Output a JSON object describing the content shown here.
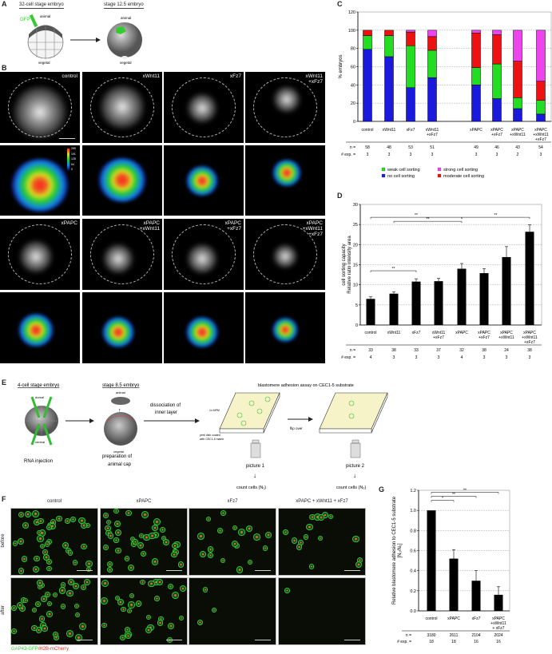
{
  "panels": {
    "A": "A",
    "B": "B",
    "C": "C",
    "D": "D",
    "E": "E",
    "F": "F",
    "G": "G"
  },
  "panelA": {
    "left_title": "32-cell stage embryo",
    "right_title": "stage 12.5 embryo",
    "gfp": "GFP",
    "animal": "animal",
    "vegetal": "vegetal"
  },
  "panelB": {
    "row1_labels": [
      "control",
      "xWnt11",
      "xFz7",
      "xWnt11\n+xFz7"
    ],
    "row2_labels": [
      "xPAPC",
      "xPAPC\n+xWnt11",
      "xPAPC\n+xFz7",
      "xPAPC\n+xWnt11\n+xFz7"
    ],
    "colorbar_ticks": [
      "255",
      "191",
      "128",
      "64",
      "0"
    ]
  },
  "panelE": {
    "step1_title": "4-cell stage embryo",
    "dorsal": "dorsal",
    "ventral": "ventral",
    "step1_caption": "RNA injection",
    "step2_title": "stage 8.5 embryo",
    "animal": "animal",
    "vegetal": "vegetal",
    "step2_caption_1": "preparation of",
    "step2_caption_2": "animal cap",
    "arrow_label_1": "dissociation of",
    "arrow_label_2": "inner layer",
    "assay_title": "blastomere adhesion assay on CEC1-5 substrate",
    "mpm": "1x MPM",
    "dish_1": "petri dish coated",
    "dish_2": "with CEC1-5 matrix",
    "flip": "flip over",
    "picture1": "picture 1",
    "picture2": "picture 2",
    "count1": "count cells  (N₁)",
    "count2": "count cells  (N₂)"
  },
  "panelF": {
    "columns": [
      "control",
      "xPAPC",
      "xFz7",
      "xPAPC + xWnt11 + xFz7"
    ],
    "rows": [
      "before",
      "after"
    ],
    "legend_green": "GAP43-GFP",
    "legend_sep": "/",
    "legend_red": "H2B-mCherry",
    "colors": {
      "green": "#33cc33",
      "red": "#dd3322"
    }
  },
  "chart_data": [
    {
      "id": "C",
      "type": "bar",
      "stacked": true,
      "ylabel": "% embryos",
      "ylim": [
        0,
        120
      ],
      "yticks": [
        0,
        20,
        40,
        60,
        80,
        100,
        120
      ],
      "grid": true,
      "categories": [
        "control",
        "xWnt11",
        "xFz7",
        "xWnt11\n+xFz7",
        "xPAPC",
        "xPAPC\n+xFz7",
        "xPAPC\n+xWnt11",
        "xPAPC\n+xWnt11\n+xFz7"
      ],
      "series": [
        {
          "name": "no cell sorting",
          "color": "#1a1adc",
          "values": [
            79,
            71,
            37,
            48,
            40,
            25,
            14,
            8
          ]
        },
        {
          "name": "weak cell sorting",
          "color": "#22dd22",
          "values": [
            15,
            23,
            46,
            30,
            19,
            38,
            12,
            15
          ]
        },
        {
          "name": "moderate cell sorting",
          "color": "#ee1111",
          "values": [
            6,
            6,
            15,
            15,
            38,
            32,
            40,
            21
          ]
        },
        {
          "name": "strong cell sorting",
          "color": "#ee44ee",
          "values": [
            0,
            0,
            2,
            7,
            3,
            5,
            34,
            56
          ]
        }
      ],
      "legend_order": [
        "weak cell sorting",
        "strong cell sorting",
        "no cell sorting",
        "moderate cell sorting"
      ],
      "legend": "bottom",
      "n_label": "n =",
      "n": [
        "58",
        "48",
        "53",
        "51",
        "49",
        "46",
        "43",
        "54"
      ],
      "exp_label": "# exp. =",
      "exp": [
        "3",
        "3",
        "3",
        "3",
        "3",
        "3",
        "2",
        "3"
      ]
    },
    {
      "id": "D",
      "type": "bar",
      "ylabel": "cell sorting capacity\nRelative ratio intensity area",
      "ylim": [
        0,
        30
      ],
      "yticks": [
        0,
        5,
        10,
        15,
        20,
        25,
        30
      ],
      "grid": true,
      "categories": [
        "control",
        "xWnt11",
        "xFz7",
        "xWnt11\n+xFz7",
        "xPAPC",
        "xPAPC\n+xFz7",
        "xPAPC\n+xWnt11",
        "xPAPC\n+xWnt11\n+xFz7"
      ],
      "values": [
        6.5,
        7.8,
        10.8,
        10.9,
        14.0,
        12.9,
        16.9,
        23.2
      ],
      "errors": [
        0.5,
        0.4,
        0.7,
        0.7,
        1.3,
        1.1,
        2.6,
        1.7
      ],
      "significance": [
        {
          "from": 0,
          "to": 4,
          "label": "**",
          "level": 26.8
        },
        {
          "from": 1,
          "to": 4,
          "label": "**",
          "level": 25.8
        },
        {
          "from": 4,
          "to": 7,
          "label": "**",
          "level": 26.8
        },
        {
          "from": 0,
          "to": 2,
          "label": "**",
          "level": 13.5
        }
      ],
      "n_label": "n =",
      "n": [
        "33",
        "38",
        "33",
        "37",
        "32",
        "38",
        "24",
        "38"
      ],
      "exp_label": "# exp. =",
      "exp": [
        "4",
        "3",
        "3",
        "3",
        "4",
        "3",
        "3",
        "3"
      ]
    },
    {
      "id": "G",
      "type": "bar",
      "ylabel": "Relative blastomere adhesion to CEC1-5 substrate\n[N₂/N₁]",
      "ylim": [
        0,
        1.2
      ],
      "yticks": [
        0,
        0.2,
        0.4,
        0.6,
        0.8,
        1.0,
        1.2
      ],
      "grid": true,
      "categories": [
        "control",
        "xPAPC",
        "xFz7",
        "xPAPC\n+xWnt11\n+ xFz7"
      ],
      "values": [
        1.0,
        0.52,
        0.3,
        0.16
      ],
      "errors": [
        0,
        0.09,
        0.1,
        0.08
      ],
      "significance": [
        {
          "from": 0,
          "to": 1,
          "label": "*",
          "level": 1.1
        },
        {
          "from": 0,
          "to": 2,
          "label": "**",
          "level": 1.14
        },
        {
          "from": 0,
          "to": 3,
          "label": "**",
          "level": 1.18
        }
      ],
      "n_label": "n =",
      "n": [
        "3180",
        "2611",
        "2104",
        "2024"
      ],
      "exp_label": "# exp. =",
      "exp": [
        "18",
        "18",
        "16",
        "16"
      ]
    }
  ]
}
